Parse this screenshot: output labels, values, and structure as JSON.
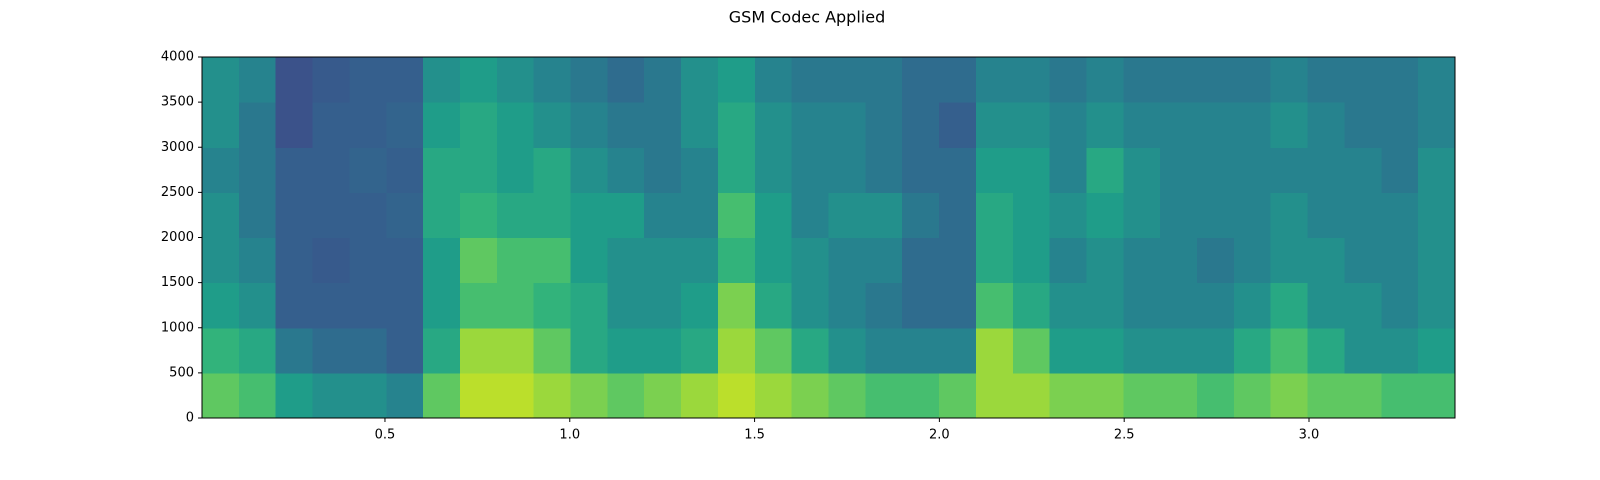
{
  "chart_data": {
    "type": "spectrogram",
    "title": "GSM Codec Applied",
    "xlim": [
      0.005,
      3.395
    ],
    "ylim": [
      0,
      4000
    ],
    "xticks": [
      0.5,
      {
        "value": 1,
        "label": "1.0"
      },
      1.5,
      {
        "value": 2,
        "label": "2.0"
      },
      2.5,
      {
        "value": 3,
        "label": "3.0"
      }
    ],
    "yticks": [
      0,
      500,
      1000,
      1500,
      2000,
      2500,
      3000,
      3500,
      4000
    ],
    "colormap": "viridis",
    "zlim": [
      0,
      1
    ],
    "z_by_time": [
      [
        0.75,
        0.65,
        0.55,
        0.5,
        0.5,
        0.45,
        0.5,
        0.5
      ],
      [
        0.7,
        0.6,
        0.5,
        0.45,
        0.4,
        0.4,
        0.4,
        0.45
      ],
      [
        0.55,
        0.4,
        0.3,
        0.3,
        0.3,
        0.3,
        0.25,
        0.25
      ],
      [
        0.5,
        0.35,
        0.3,
        0.28,
        0.3,
        0.3,
        0.3,
        0.28
      ],
      [
        0.5,
        0.35,
        0.3,
        0.3,
        0.3,
        0.32,
        0.3,
        0.3
      ],
      [
        0.45,
        0.3,
        0.3,
        0.3,
        0.32,
        0.3,
        0.32,
        0.3
      ],
      [
        0.75,
        0.6,
        0.55,
        0.55,
        0.6,
        0.6,
        0.55,
        0.5
      ],
      [
        0.9,
        0.85,
        0.7,
        0.75,
        0.65,
        0.6,
        0.6,
        0.55
      ],
      [
        0.9,
        0.85,
        0.7,
        0.7,
        0.6,
        0.55,
        0.55,
        0.5
      ],
      [
        0.85,
        0.75,
        0.65,
        0.7,
        0.6,
        0.6,
        0.5,
        0.45
      ],
      [
        0.8,
        0.6,
        0.6,
        0.55,
        0.55,
        0.5,
        0.45,
        0.4
      ],
      [
        0.75,
        0.55,
        0.5,
        0.5,
        0.55,
        0.45,
        0.4,
        0.35
      ],
      [
        0.8,
        0.55,
        0.5,
        0.5,
        0.45,
        0.4,
        0.4,
        0.4
      ],
      [
        0.85,
        0.6,
        0.55,
        0.5,
        0.45,
        0.45,
        0.5,
        0.5
      ],
      [
        0.9,
        0.85,
        0.8,
        0.65,
        0.7,
        0.6,
        0.6,
        0.55
      ],
      [
        0.85,
        0.75,
        0.6,
        0.55,
        0.55,
        0.5,
        0.5,
        0.45
      ],
      [
        0.8,
        0.6,
        0.5,
        0.5,
        0.45,
        0.45,
        0.45,
        0.4
      ],
      [
        0.75,
        0.5,
        0.45,
        0.45,
        0.5,
        0.45,
        0.45,
        0.4
      ],
      [
        0.7,
        0.45,
        0.4,
        0.45,
        0.5,
        0.4,
        0.4,
        0.4
      ],
      [
        0.7,
        0.45,
        0.35,
        0.35,
        0.4,
        0.35,
        0.35,
        0.35
      ],
      [
        0.75,
        0.45,
        0.35,
        0.35,
        0.35,
        0.35,
        0.3,
        0.35
      ],
      [
        0.85,
        0.85,
        0.7,
        0.6,
        0.6,
        0.55,
        0.5,
        0.45
      ],
      [
        0.85,
        0.75,
        0.6,
        0.55,
        0.55,
        0.55,
        0.5,
        0.45
      ],
      [
        0.8,
        0.55,
        0.5,
        0.45,
        0.5,
        0.45,
        0.45,
        0.4
      ],
      [
        0.8,
        0.55,
        0.5,
        0.5,
        0.55,
        0.6,
        0.5,
        0.45
      ],
      [
        0.75,
        0.5,
        0.45,
        0.45,
        0.5,
        0.5,
        0.45,
        0.4
      ],
      [
        0.75,
        0.5,
        0.45,
        0.45,
        0.45,
        0.45,
        0.45,
        0.4
      ],
      [
        0.7,
        0.5,
        0.45,
        0.4,
        0.45,
        0.45,
        0.45,
        0.4
      ],
      [
        0.75,
        0.6,
        0.5,
        0.45,
        0.45,
        0.45,
        0.45,
        0.4
      ],
      [
        0.8,
        0.7,
        0.6,
        0.5,
        0.5,
        0.45,
        0.5,
        0.45
      ],
      [
        0.75,
        0.6,
        0.5,
        0.5,
        0.45,
        0.45,
        0.45,
        0.4
      ],
      [
        0.75,
        0.5,
        0.5,
        0.45,
        0.45,
        0.45,
        0.4,
        0.4
      ],
      [
        0.7,
        0.5,
        0.45,
        0.45,
        0.45,
        0.4,
        0.4,
        0.4
      ],
      [
        0.7,
        0.55,
        0.5,
        0.5,
        0.5,
        0.5,
        0.45,
        0.45
      ]
    ]
  }
}
